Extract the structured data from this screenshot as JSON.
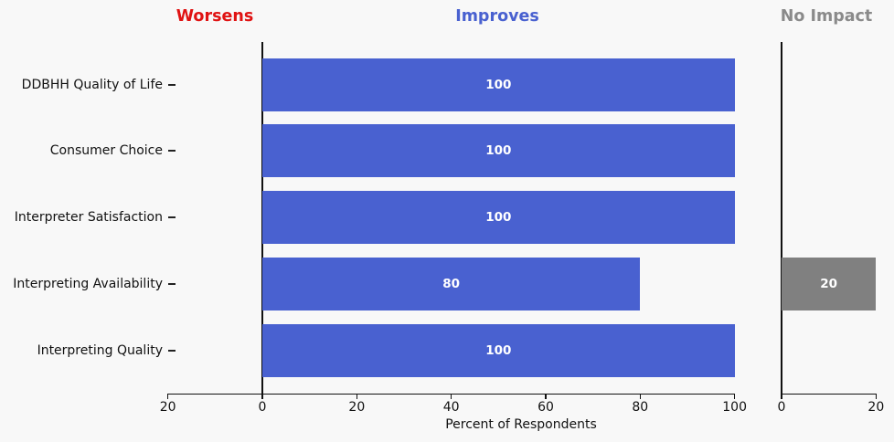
{
  "figure": {
    "background": "#f8f8f8"
  },
  "header": {
    "sections": [
      {
        "label": "Worsens",
        "color": "#e01212"
      },
      {
        "label": "Improves",
        "color": "#4961d0"
      },
      {
        "label": "No Impact",
        "color": "#8a8a8a"
      }
    ]
  },
  "chart_data": {
    "type": "bar",
    "orientation": "horizontal",
    "xlabel": "Percent of Respondents",
    "categories": [
      "DDBHH Quality of Life",
      "Consumer Choice",
      "Interpreter Satisfaction",
      "Interpreting Availability",
      "Interpreting Quality"
    ],
    "series": [
      {
        "name": "Worsens",
        "panel": "main",
        "direction": "left",
        "color": "#e01212",
        "values": [
          0,
          0,
          0,
          0,
          0
        ]
      },
      {
        "name": "Improves",
        "panel": "main",
        "direction": "right",
        "color": "#4961d0",
        "values": [
          100,
          100,
          100,
          80,
          100
        ]
      },
      {
        "name": "No Impact",
        "panel": "no-impact",
        "direction": "right",
        "color": "#808080",
        "values": [
          0,
          0,
          0,
          20,
          0
        ]
      }
    ],
    "main_axis": {
      "range": [
        -20,
        100
      ],
      "tick_values": [
        -20,
        0,
        20,
        40,
        60,
        80,
        100
      ],
      "tick_labels": [
        "20",
        "0",
        "20",
        "40",
        "60",
        "80",
        "100"
      ]
    },
    "no_impact_axis": {
      "range": [
        0,
        20
      ],
      "tick_values": [
        0,
        20
      ],
      "tick_labels": [
        "0",
        "20"
      ]
    },
    "bar_value_labels_shown": true,
    "legend": "none",
    "grid": false
  }
}
